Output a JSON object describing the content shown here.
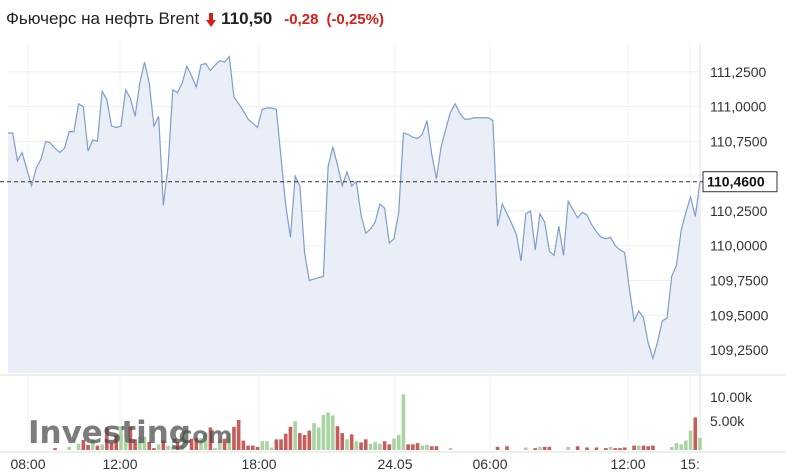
{
  "header": {
    "title": "Фьючерс на нефть Brent",
    "price": "110,50",
    "change": "-0,28",
    "change_pct": "(-0,25%)",
    "direction": "down",
    "down_color": "#d91e18"
  },
  "logo": {
    "text": "Investing",
    "suffix": ".com"
  },
  "current_price_label": "110,4600",
  "volume_tick_labels": [
    "10.00k",
    "5.00k"
  ],
  "colors": {
    "line": "#7f9ecb",
    "fill": "#e9eef7",
    "vol_up": "#a8d4a2",
    "vol_down": "#c95b5b",
    "ref_line": "#333333"
  },
  "chart_data": {
    "type": "area",
    "title": "Фьючерс на нефть Brent",
    "x_tick_labels": [
      "08:00",
      "12:00",
      "18:00",
      "24.05",
      "06:00",
      "12:00",
      "15:"
    ],
    "y_tick_labels": [
      "111,2500",
      "111,0000",
      "110,7500",
      "110,5000",
      "110,2500",
      "110,0000",
      "109,7500",
      "109,5000",
      "109,2500"
    ],
    "y_ticks": [
      111.25,
      111.0,
      110.75,
      110.5,
      110.25,
      110.0,
      109.75,
      109.5,
      109.25
    ],
    "ylim": [
      109.085,
      111.45
    ],
    "reference_value": 110.46,
    "price_series": [
      110.81,
      110.81,
      110.61,
      110.67,
      110.55,
      110.43,
      110.56,
      110.62,
      110.75,
      110.74,
      110.7,
      110.67,
      110.7,
      110.82,
      110.82,
      111.02,
      111.0,
      110.68,
      110.76,
      110.75,
      111.11,
      111.05,
      110.86,
      110.85,
      110.86,
      111.12,
      111.06,
      110.93,
      111.17,
      111.32,
      111.17,
      110.86,
      110.93,
      110.29,
      110.57,
      111.12,
      111.1,
      111.17,
      111.29,
      111.22,
      111.14,
      111.3,
      111.31,
      111.26,
      111.3,
      111.33,
      111.32,
      111.36,
      111.07,
      111.02,
      110.97,
      110.91,
      110.88,
      110.85,
      110.98,
      110.99,
      110.99,
      110.98,
      110.63,
      110.29,
      110.06,
      110.5,
      110.43,
      109.95,
      109.75,
      109.76,
      109.77,
      109.78,
      110.57,
      110.71,
      110.58,
      110.43,
      110.53,
      110.43,
      110.46,
      110.22,
      110.09,
      110.12,
      110.17,
      110.3,
      110.27,
      110.02,
      110.05,
      110.24,
      110.81,
      110.8,
      110.78,
      110.77,
      110.8,
      110.9,
      110.66,
      110.48,
      110.71,
      110.84,
      110.96,
      111.02,
      110.95,
      110.91,
      110.91,
      110.92,
      110.92,
      110.92,
      110.92,
      110.9,
      110.14,
      110.3,
      110.23,
      110.16,
      110.08,
      109.89,
      110.23,
      110.25,
      109.97,
      110.23,
      110.17,
      109.96,
      109.93,
      110.14,
      109.93,
      110.32,
      110.26,
      110.2,
      110.24,
      110.22,
      110.15,
      110.1,
      110.06,
      110.05,
      110.06,
      110.0,
      109.97,
      109.95,
      109.69,
      109.46,
      109.53,
      109.48,
      109.3,
      109.19,
      109.31,
      109.46,
      109.48,
      109.78,
      109.86,
      110.11,
      110.24,
      110.35,
      110.21,
      110.46
    ],
    "volume_series": [
      0,
      0,
      0,
      0,
      0,
      0,
      0,
      0,
      0,
      0,
      300,
      0,
      0,
      500,
      0,
      1000,
      1600,
      800,
      1800,
      700,
      900,
      3600,
      1200,
      2400,
      3800,
      1500,
      3700,
      1700,
      2000,
      2100,
      1300,
      300,
      900,
      1500,
      700,
      500,
      1300,
      700,
      0,
      1800,
      1900,
      1900,
      2800,
      3600,
      300,
      1700,
      1800,
      2700,
      3700,
      4800,
      1500,
      700,
      700,
      500,
      1400,
      1400,
      400,
      1700,
      1700,
      2600,
      3700,
      4600,
      2700,
      2400,
      3100,
      4300,
      3600,
      5600,
      6000,
      5500,
      3800,
      2700,
      1700,
      2500,
      1400,
      1200,
      1700,
      1000,
      1300,
      1000,
      1400,
      900,
      1800,
      2400,
      8900,
      900,
      900,
      1100,
      700,
      800,
      600,
      600,
      0,
      0,
      300,
      0,
      0,
      0,
      0,
      0,
      0,
      0,
      0,
      0,
      500,
      0,
      600,
      0,
      0,
      0,
      400,
      0,
      300,
      500,
      500,
      500,
      0,
      0,
      0,
      500,
      0,
      600,
      0,
      400,
      0,
      400,
      0,
      300,
      500,
      300,
      300,
      400,
      0,
      700,
      700,
      700,
      600,
      700,
      0,
      0,
      0,
      500,
      1100,
      900,
      1500,
      3100,
      5200,
      1900
    ]
  }
}
